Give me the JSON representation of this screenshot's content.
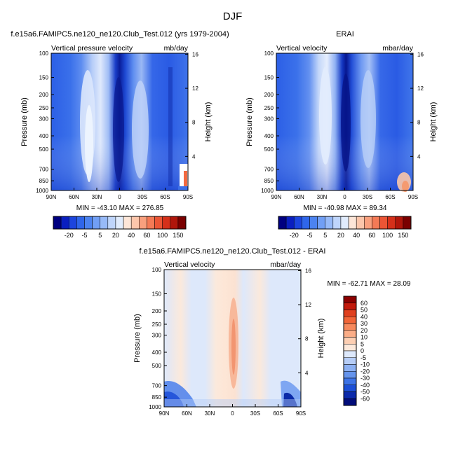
{
  "figure_title": "DJF",
  "panels": [
    {
      "title": "f.e15a6.FAMIPC5.ne120_ne120.Club_Test.012 (yrs 1979-2004)",
      "left_label": "Vertical pressure velocity",
      "right_label": "mb/day",
      "stats": "MIN = -43.10   MAX = 276.85"
    },
    {
      "title": "ERAI",
      "left_label": "Vertical velocity",
      "right_label": "mbar/day",
      "stats": "MIN = -40.98   MAX =  89.34"
    },
    {
      "title": "f.e15a6.FAMIPC5.ne120_ne120.Club_Test.012 - ERAI",
      "left_label": "Vertical velocity",
      "right_label": "mbar/day",
      "stats": "MIN = -62.71   MAX =  28.09"
    }
  ],
  "colorbars": {
    "top_levels": [
      "-20",
      "-5",
      "5",
      "20",
      "40",
      "60",
      "100",
      "150"
    ],
    "top_colors": [
      "#000080",
      "#0a1fc0",
      "#1c45de",
      "#2f66ea",
      "#4c83f0",
      "#719ff5",
      "#97baf8",
      "#bfd5fb",
      "#e1ecfd",
      "#fde6d8",
      "#fcc6ab",
      "#f9a07e",
      "#f47a56",
      "#eb5535",
      "#d5301a",
      "#b0160b",
      "#7a0000"
    ],
    "diff_levels": [
      "60",
      "50",
      "40",
      "30",
      "20",
      "10",
      "5",
      "0",
      "-5",
      "-10",
      "-20",
      "-30",
      "-40",
      "-50",
      "-60"
    ],
    "diff_colors": [
      "#8b0000",
      "#c21a0c",
      "#e0401f",
      "#f26538",
      "#f7895d",
      "#fbad87",
      "#fdcfb3",
      "#fde9db",
      "#dde8fb",
      "#b6cdf7",
      "#8cb0f2",
      "#6594ec",
      "#3d73e6",
      "#1c4fd6",
      "#0b2aab",
      "#020d7a"
    ]
  },
  "chart_data": [
    {
      "type": "heatmap",
      "title": "f.e15a6.FAMIPC5.ne120_ne120.Club_Test.012 (yrs 1979-2004)",
      "variable": "Vertical pressure velocity",
      "units": "mb/day",
      "xlabel": "",
      "ylabel": "Pressure (mb)",
      "y2label": "Height (km)",
      "x_ticks": [
        "90N",
        "60N",
        "30N",
        "0",
        "30S",
        "60S",
        "90S"
      ],
      "y_ticks": [
        "100",
        "150",
        "200",
        "250",
        "300",
        "400",
        "500",
        "700",
        "850",
        "1000"
      ],
      "y2_ticks": [
        "4",
        "8",
        "12",
        "16"
      ],
      "xlim": [
        90,
        -90
      ],
      "ylim": [
        1000,
        100
      ],
      "y_scale": "log",
      "min": -43.1,
      "max": 276.85
    },
    {
      "type": "heatmap",
      "title": "ERAI",
      "variable": "Vertical velocity",
      "units": "mbar/day",
      "xlabel": "",
      "ylabel": "Pressure (mb)",
      "y2label": "Height (km)",
      "x_ticks": [
        "90N",
        "60N",
        "30N",
        "0",
        "30S",
        "60S",
        "90S"
      ],
      "y_ticks": [
        "100",
        "150",
        "200",
        "250",
        "300",
        "400",
        "500",
        "700",
        "850",
        "1000"
      ],
      "y2_ticks": [
        "4",
        "8",
        "12",
        "16"
      ],
      "xlim": [
        90,
        -90
      ],
      "ylim": [
        1000,
        100
      ],
      "y_scale": "log",
      "min": -40.98,
      "max": 89.34
    },
    {
      "type": "heatmap",
      "title": "f.e15a6.FAMIPC5.ne120_ne120.Club_Test.012 - ERAI",
      "variable": "Vertical velocity",
      "units": "mbar/day",
      "xlabel": "",
      "ylabel": "Pressure (mb)",
      "y2label": "Height (km)",
      "x_ticks": [
        "90N",
        "60N",
        "30N",
        "0",
        "30S",
        "60S",
        "90S"
      ],
      "y_ticks": [
        "100",
        "150",
        "200",
        "250",
        "300",
        "400",
        "500",
        "700",
        "850",
        "1000"
      ],
      "y2_ticks": [
        "4",
        "8",
        "12",
        "16"
      ],
      "xlim": [
        90,
        -90
      ],
      "ylim": [
        1000,
        100
      ],
      "y_scale": "log",
      "min": -62.71,
      "max": 28.09
    }
  ]
}
